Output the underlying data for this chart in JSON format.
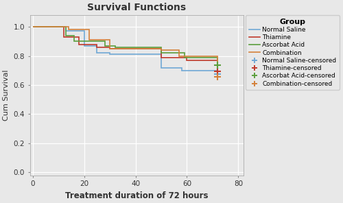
{
  "title": "Survival Functions",
  "xlabel": "Treatment duration of 72 hours",
  "ylabel": "Cum Survival",
  "xlim": [
    -1,
    82
  ],
  "ylim": [
    -0.02,
    1.08
  ],
  "yticks": [
    0.0,
    0.2,
    0.4,
    0.6,
    0.8,
    1.0
  ],
  "xticks": [
    0,
    20,
    40,
    60,
    80
  ],
  "fig_bg": "#e8e8e8",
  "ax_bg": "#e8e8e8",
  "groups": {
    "Normal Saline": {
      "color": "#6fa8d5",
      "steps_x": [
        0,
        13,
        13,
        20,
        20,
        25,
        25,
        30,
        30,
        50,
        50,
        58,
        58,
        72,
        72
      ],
      "steps_y": [
        1.0,
        1.0,
        0.97,
        0.97,
        0.87,
        0.87,
        0.82,
        0.82,
        0.81,
        0.81,
        0.72,
        0.72,
        0.7,
        0.7,
        0.675
      ],
      "censored_x": [
        72
      ],
      "censored_y": [
        0.675
      ]
    },
    "Thiamine": {
      "color": "#c0392b",
      "steps_x": [
        0,
        12,
        12,
        18,
        18,
        25,
        25,
        30,
        30,
        50,
        50,
        60,
        60,
        72,
        72
      ],
      "steps_y": [
        1.0,
        1.0,
        0.93,
        0.93,
        0.88,
        0.88,
        0.86,
        0.86,
        0.85,
        0.85,
        0.79,
        0.79,
        0.77,
        0.77,
        0.695
      ],
      "censored_x": [
        72
      ],
      "censored_y": [
        0.695
      ]
    },
    "Ascorbat Acid": {
      "color": "#5b9e3c",
      "steps_x": [
        0,
        13,
        13,
        16,
        16,
        28,
        28,
        32,
        32,
        50,
        50,
        59,
        59,
        72,
        72
      ],
      "steps_y": [
        1.0,
        1.0,
        0.94,
        0.94,
        0.9,
        0.9,
        0.87,
        0.87,
        0.86,
        0.86,
        0.82,
        0.82,
        0.79,
        0.79,
        0.735
      ],
      "censored_x": [
        72
      ],
      "censored_y": [
        0.735
      ]
    },
    "Combination": {
      "color": "#d4813a",
      "steps_x": [
        0,
        14,
        14,
        22,
        22,
        30,
        30,
        50,
        50,
        57,
        57,
        72,
        72
      ],
      "steps_y": [
        1.0,
        1.0,
        0.98,
        0.98,
        0.91,
        0.91,
        0.85,
        0.85,
        0.84,
        0.84,
        0.8,
        0.8,
        0.655
      ],
      "censored_x": [
        72
      ],
      "censored_y": [
        0.655
      ]
    }
  },
  "legend_title": "Group",
  "legend_entries": [
    {
      "label": "Normal Saline",
      "color": "#6fa8d5",
      "marker": null
    },
    {
      "label": "Thiamine",
      "color": "#c0392b",
      "marker": null
    },
    {
      "label": "Ascorbat Acid",
      "color": "#5b9e3c",
      "marker": null
    },
    {
      "label": "Combination",
      "color": "#d4813a",
      "marker": null
    },
    {
      "label": "Normal Saline-censored",
      "color": "#6fa8d5",
      "marker": "+"
    },
    {
      "label": "Thiamine-censored",
      "color": "#c0392b",
      "marker": "+"
    },
    {
      "label": "Ascorbat Acid-censored",
      "color": "#5b9e3c",
      "marker": "+"
    },
    {
      "label": "Combination-censored",
      "color": "#d4813a",
      "marker": "+"
    }
  ]
}
